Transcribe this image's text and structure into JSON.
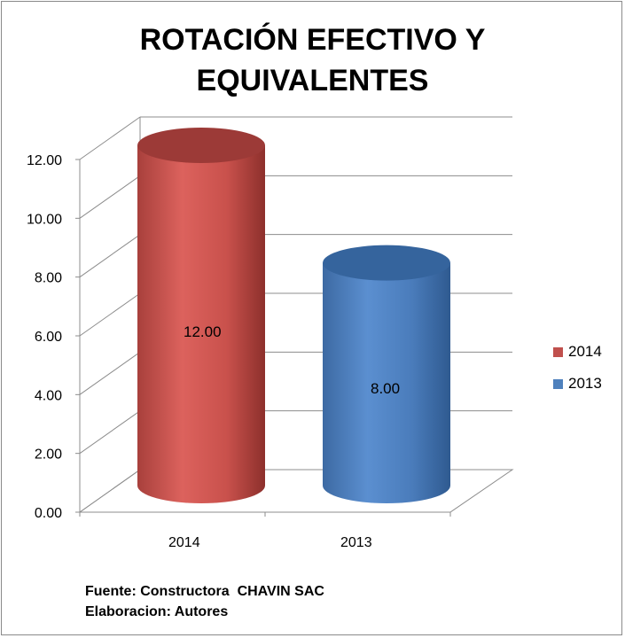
{
  "title_lines": [
    "ROTACIÓN EFECTIVO Y",
    "EQUIVALENTES"
  ],
  "chart_data": {
    "type": "bar",
    "title": "ROTACIÓN EFECTIVO Y EQUIVALENTES",
    "categories": [
      "2014",
      "2013"
    ],
    "series": [
      {
        "name": "2014",
        "values": [
          12.0,
          null
        ],
        "color": "#c0504d"
      },
      {
        "name": "2013",
        "values": [
          null,
          8.0
        ],
        "color": "#4f81bd"
      }
    ],
    "values": [
      12.0,
      8.0
    ],
    "data_labels": [
      "12.00",
      "8.00"
    ],
    "ylim": [
      0,
      12
    ],
    "yticks": [
      "0.00",
      "2.00",
      "4.00",
      "6.00",
      "8.00",
      "10.00",
      "12.00"
    ],
    "grid": true,
    "legend_position": "right",
    "style": "3d-cylinder"
  },
  "legend": [
    {
      "label": "2014",
      "color": "#c0504d"
    },
    {
      "label": "2013",
      "color": "#4f81bd"
    }
  ],
  "footer": {
    "source": "Fuente: Constructora  CHAVIN SAC",
    "author": "Elaboracion: Autores"
  }
}
